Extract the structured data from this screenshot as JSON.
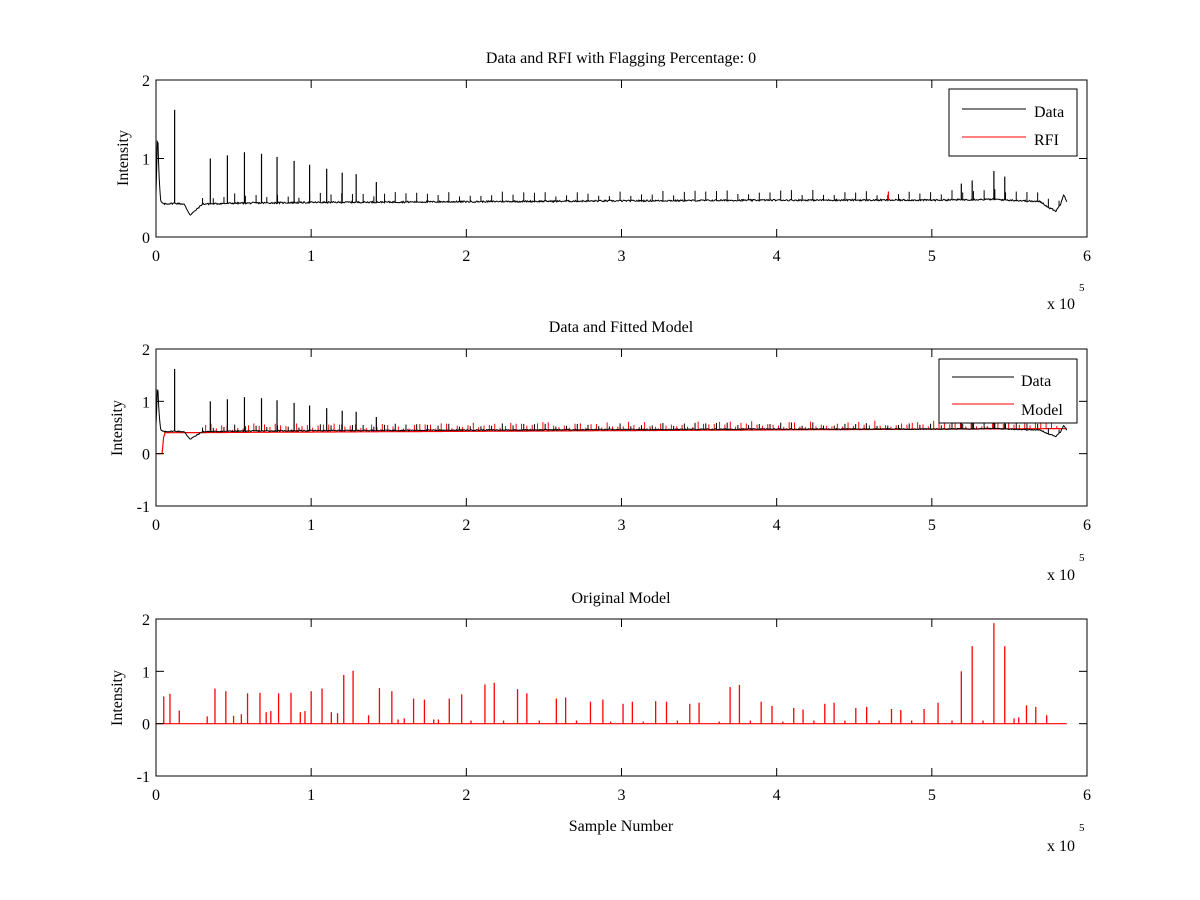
{
  "figure": {
    "background": "#ffffff"
  },
  "chart_data": [
    {
      "type": "line",
      "title": "Data and RFI with Flagging Percentage: 0",
      "xlabel": "",
      "ylabel": "Intensity",
      "xlim": [
        0,
        6
      ],
      "ylim": [
        0,
        2
      ],
      "xticks": [
        "0",
        "1",
        "2",
        "3",
        "4",
        "5",
        "6"
      ],
      "yticks": [
        "0",
        "1",
        "2"
      ],
      "x_multiplier": {
        "base": "x 10",
        "exponent": "5"
      },
      "legend": {
        "placement": "top-right",
        "entries": [
          "Data",
          "RFI"
        ]
      },
      "colors": {
        "Data": "#000000",
        "RFI": "#ff0000"
      },
      "baseline": {
        "x": [
          0,
          0.01,
          0.02,
          0.03,
          0.05,
          0.12,
          0.18,
          0.22,
          0.25,
          0.3,
          0.5,
          1.0,
          2.0,
          3.0,
          4.0,
          5.0,
          5.4,
          5.7,
          5.75,
          5.8,
          5.83,
          5.85,
          5.87
        ],
        "y": [
          0.55,
          1.35,
          0.75,
          0.45,
          0.42,
          0.43,
          0.42,
          0.28,
          0.33,
          0.42,
          0.43,
          0.44,
          0.45,
          0.46,
          0.47,
          0.47,
          0.48,
          0.45,
          0.38,
          0.33,
          0.42,
          0.55,
          0.45
        ]
      },
      "spikes": [
        {
          "x": 0.12,
          "y": 1.62
        },
        {
          "x": 0.35,
          "y": 1.0
        },
        {
          "x": 0.46,
          "y": 1.04
        },
        {
          "x": 0.57,
          "y": 1.08
        },
        {
          "x": 0.68,
          "y": 1.06
        },
        {
          "x": 0.78,
          "y": 1.02
        },
        {
          "x": 0.89,
          "y": 0.97
        },
        {
          "x": 0.99,
          "y": 0.92
        },
        {
          "x": 1.1,
          "y": 0.87
        },
        {
          "x": 1.2,
          "y": 0.82
        },
        {
          "x": 1.29,
          "y": 0.8
        },
        {
          "x": 1.42,
          "y": 0.7
        },
        {
          "x": 5.19,
          "y": 0.68
        },
        {
          "x": 5.26,
          "y": 0.72
        },
        {
          "x": 5.4,
          "y": 0.84
        },
        {
          "x": 5.47,
          "y": 0.77
        }
      ],
      "rfi": [
        {
          "x": 4.72,
          "y": 0.58
        }
      ]
    },
    {
      "type": "line",
      "title": "Data and Fitted Model",
      "xlabel": "",
      "ylabel": "Intensity",
      "xlim": [
        0,
        6
      ],
      "ylim": [
        -1,
        2
      ],
      "xticks": [
        "0",
        "1",
        "2",
        "3",
        "4",
        "5",
        "6"
      ],
      "yticks": [
        "-1",
        "0",
        "1",
        "2"
      ],
      "x_multiplier": {
        "base": "x 10",
        "exponent": "5"
      },
      "legend": {
        "placement": "top-right",
        "entries": [
          "Data",
          "Model"
        ]
      },
      "colors": {
        "Data": "#000000",
        "Model": "#ff0000"
      },
      "model_baseline": {
        "x": [
          0,
          0.045,
          0.05,
          0.06,
          0.07,
          5.87
        ],
        "y": [
          0.0,
          0.0,
          0.4,
          0.4,
          0.4,
          0.48
        ]
      }
    },
    {
      "type": "line",
      "title": "Original Model",
      "xlabel": "Sample Number",
      "ylabel": "Intensity",
      "xlim": [
        0,
        6
      ],
      "ylim": [
        -1,
        2
      ],
      "xticks": [
        "0",
        "1",
        "2",
        "3",
        "4",
        "5",
        "6"
      ],
      "yticks": [
        "-1",
        "0",
        "1",
        "2"
      ],
      "x_multiplier": {
        "base": "x 10",
        "exponent": "5"
      },
      "color": "#ff0000",
      "baseline_y": 0.0,
      "x_end": 5.87,
      "spikes": [
        {
          "x": 0.05,
          "y": 0.52
        },
        {
          "x": 0.09,
          "y": 0.57
        },
        {
          "x": 0.15,
          "y": 0.25
        },
        {
          "x": 0.33,
          "y": 0.14
        },
        {
          "x": 0.38,
          "y": 0.67
        },
        {
          "x": 0.45,
          "y": 0.62
        },
        {
          "x": 0.5,
          "y": 0.15
        },
        {
          "x": 0.55,
          "y": 0.18
        },
        {
          "x": 0.59,
          "y": 0.58
        },
        {
          "x": 0.67,
          "y": 0.59
        },
        {
          "x": 0.71,
          "y": 0.22
        },
        {
          "x": 0.74,
          "y": 0.24
        },
        {
          "x": 0.79,
          "y": 0.58
        },
        {
          "x": 0.87,
          "y": 0.59
        },
        {
          "x": 0.93,
          "y": 0.22
        },
        {
          "x": 0.96,
          "y": 0.24
        },
        {
          "x": 1.0,
          "y": 0.62
        },
        {
          "x": 1.07,
          "y": 0.67
        },
        {
          "x": 1.13,
          "y": 0.22
        },
        {
          "x": 1.17,
          "y": 0.2
        },
        {
          "x": 1.21,
          "y": 0.93
        },
        {
          "x": 1.27,
          "y": 1.01
        },
        {
          "x": 1.37,
          "y": 0.16
        },
        {
          "x": 1.44,
          "y": 0.68
        },
        {
          "x": 1.52,
          "y": 0.62
        },
        {
          "x": 1.56,
          "y": 0.08
        },
        {
          "x": 1.6,
          "y": 0.1
        },
        {
          "x": 1.66,
          "y": 0.48
        },
        {
          "x": 1.73,
          "y": 0.46
        },
        {
          "x": 1.79,
          "y": 0.08
        },
        {
          "x": 1.82,
          "y": 0.08
        },
        {
          "x": 1.89,
          "y": 0.48
        },
        {
          "x": 1.97,
          "y": 0.56
        },
        {
          "x": 2.03,
          "y": 0.06
        },
        {
          "x": 2.12,
          "y": 0.75
        },
        {
          "x": 2.18,
          "y": 0.78
        },
        {
          "x": 2.24,
          "y": 0.06
        },
        {
          "x": 2.33,
          "y": 0.66
        },
        {
          "x": 2.39,
          "y": 0.58
        },
        {
          "x": 2.47,
          "y": 0.06
        },
        {
          "x": 2.58,
          "y": 0.48
        },
        {
          "x": 2.64,
          "y": 0.5
        },
        {
          "x": 2.71,
          "y": 0.06
        },
        {
          "x": 2.8,
          "y": 0.42
        },
        {
          "x": 2.88,
          "y": 0.46
        },
        {
          "x": 2.93,
          "y": 0.04
        },
        {
          "x": 3.01,
          "y": 0.38
        },
        {
          "x": 3.07,
          "y": 0.42
        },
        {
          "x": 3.14,
          "y": 0.04
        },
        {
          "x": 3.22,
          "y": 0.43
        },
        {
          "x": 3.29,
          "y": 0.42
        },
        {
          "x": 3.36,
          "y": 0.06
        },
        {
          "x": 3.44,
          "y": 0.38
        },
        {
          "x": 3.5,
          "y": 0.4
        },
        {
          "x": 3.63,
          "y": 0.04
        },
        {
          "x": 3.7,
          "y": 0.7
        },
        {
          "x": 3.76,
          "y": 0.74
        },
        {
          "x": 3.83,
          "y": 0.06
        },
        {
          "x": 3.9,
          "y": 0.42
        },
        {
          "x": 3.97,
          "y": 0.34
        },
        {
          "x": 4.04,
          "y": 0.04
        },
        {
          "x": 4.11,
          "y": 0.3
        },
        {
          "x": 4.17,
          "y": 0.27
        },
        {
          "x": 4.24,
          "y": 0.06
        },
        {
          "x": 4.31,
          "y": 0.38
        },
        {
          "x": 4.37,
          "y": 0.4
        },
        {
          "x": 4.44,
          "y": 0.06
        },
        {
          "x": 4.51,
          "y": 0.3
        },
        {
          "x": 4.58,
          "y": 0.32
        },
        {
          "x": 4.66,
          "y": 0.06
        },
        {
          "x": 4.74,
          "y": 0.28
        },
        {
          "x": 4.8,
          "y": 0.26
        },
        {
          "x": 4.87,
          "y": 0.06
        },
        {
          "x": 4.95,
          "y": 0.28
        },
        {
          "x": 5.04,
          "y": 0.4
        },
        {
          "x": 5.13,
          "y": 0.06
        },
        {
          "x": 5.19,
          "y": 1.0
        },
        {
          "x": 5.26,
          "y": 1.48
        },
        {
          "x": 5.33,
          "y": 0.06
        },
        {
          "x": 5.4,
          "y": 1.92
        },
        {
          "x": 5.47,
          "y": 1.48
        },
        {
          "x": 5.53,
          "y": 0.1
        },
        {
          "x": 5.56,
          "y": 0.12
        },
        {
          "x": 5.61,
          "y": 0.35
        },
        {
          "x": 5.67,
          "y": 0.32
        },
        {
          "x": 5.74,
          "y": 0.16
        }
      ]
    }
  ]
}
